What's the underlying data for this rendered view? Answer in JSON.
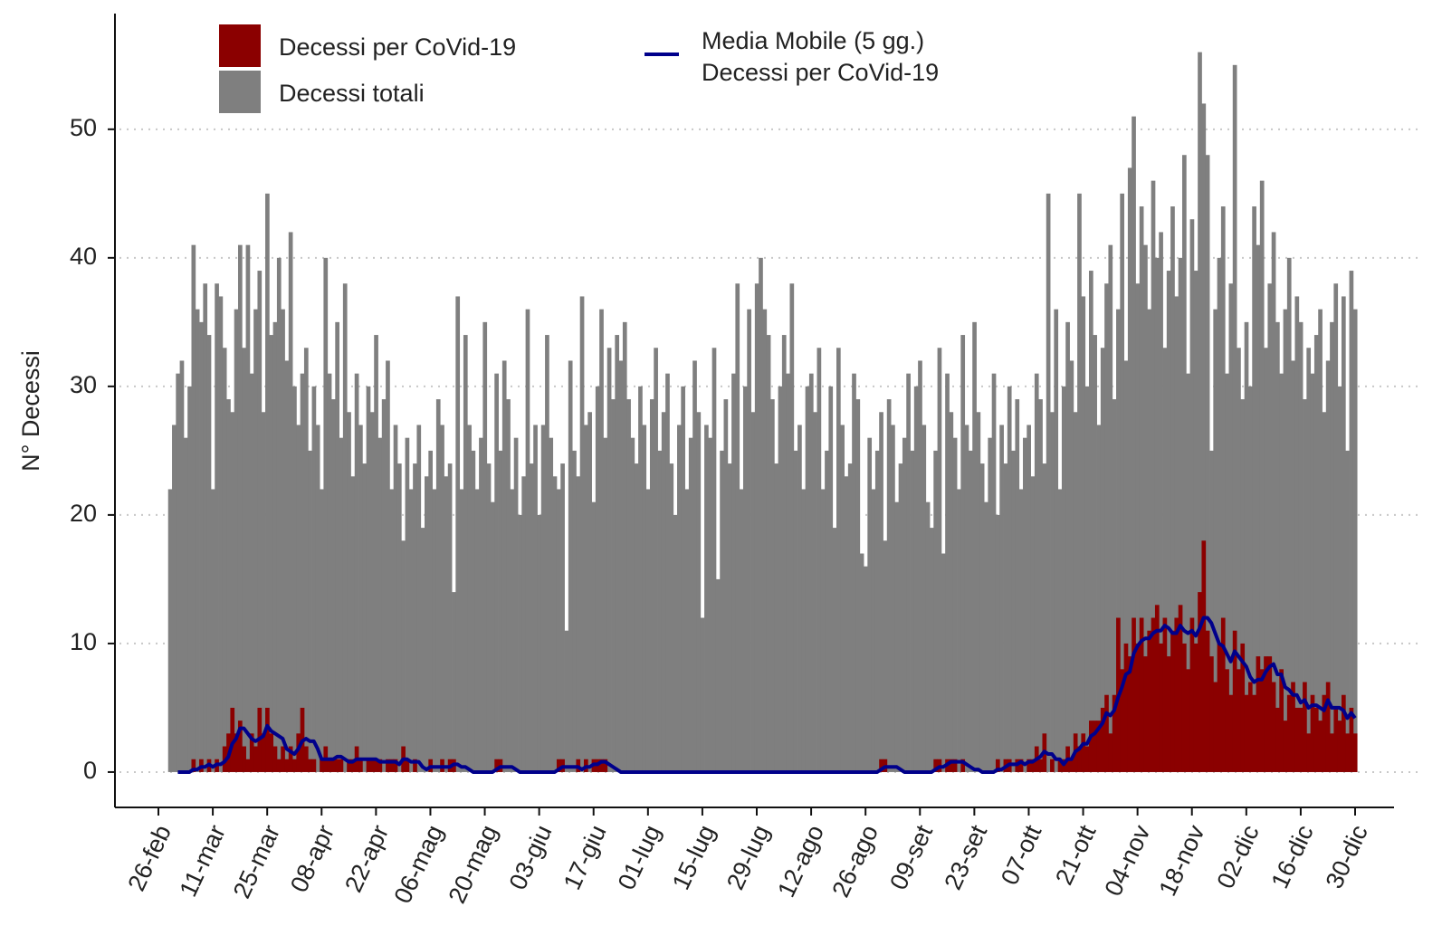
{
  "chart_data": {
    "type": "bar",
    "y_label": "N° Decessi",
    "ylim": [
      -2.75,
      59
    ],
    "yticks": [
      0,
      10,
      20,
      30,
      40,
      50
    ],
    "grid": true,
    "legend": "top-left",
    "categories": [
      "26-feb",
      null,
      null,
      null,
      null,
      null,
      null,
      null,
      null,
      null,
      null,
      null,
      null,
      null,
      "11-mar",
      null,
      null,
      null,
      null,
      null,
      null,
      null,
      null,
      null,
      null,
      null,
      null,
      null,
      "25-mar",
      null,
      null,
      null,
      null,
      null,
      null,
      null,
      null,
      null,
      null,
      null,
      null,
      null,
      "08-apr",
      null,
      null,
      null,
      null,
      null,
      null,
      null,
      null,
      null,
      null,
      null,
      null,
      null,
      "22-apr",
      null,
      null,
      null,
      null,
      null,
      null,
      null,
      null,
      null,
      null,
      null,
      null,
      null,
      "06-mag",
      null,
      null,
      null,
      null,
      null,
      null,
      null,
      null,
      null,
      null,
      null,
      null,
      null,
      "20-mag",
      null,
      null,
      null,
      null,
      null,
      null,
      null,
      null,
      null,
      null,
      null,
      null,
      null,
      "03-giu",
      null,
      null,
      null,
      null,
      null,
      null,
      null,
      null,
      null,
      null,
      null,
      null,
      null,
      "17-giu",
      null,
      null,
      null,
      null,
      null,
      null,
      null,
      null,
      null,
      null,
      null,
      null,
      null,
      "01-lug",
      null,
      null,
      null,
      null,
      null,
      null,
      null,
      null,
      null,
      null,
      null,
      null,
      null,
      "15-lug",
      null,
      null,
      null,
      null,
      null,
      null,
      null,
      null,
      null,
      null,
      null,
      null,
      null,
      "29-lug",
      null,
      null,
      null,
      null,
      null,
      null,
      null,
      null,
      null,
      null,
      null,
      null,
      null,
      "12-ago",
      null,
      null,
      null,
      null,
      null,
      null,
      null,
      null,
      null,
      null,
      null,
      null,
      null,
      "26-ago",
      null,
      null,
      null,
      null,
      null,
      null,
      null,
      null,
      null,
      null,
      null,
      null,
      null,
      "09-set",
      null,
      null,
      null,
      null,
      null,
      null,
      null,
      null,
      null,
      null,
      null,
      null,
      null,
      "23-set",
      null,
      null,
      null,
      null,
      null,
      null,
      null,
      null,
      null,
      null,
      null,
      null,
      null,
      "07-ott",
      null,
      null,
      null,
      null,
      null,
      null,
      null,
      null,
      null,
      null,
      null,
      null,
      null,
      "21-ott",
      null,
      null,
      null,
      null,
      null,
      null,
      null,
      null,
      null,
      null,
      null,
      null,
      null,
      "04-nov",
      null,
      null,
      null,
      null,
      null,
      null,
      null,
      null,
      null,
      null,
      null,
      null,
      null,
      "18-nov",
      null,
      null,
      null,
      null,
      null,
      null,
      null,
      null,
      null,
      null,
      null,
      null,
      null,
      "02-dic",
      null,
      null,
      null,
      null,
      null,
      null,
      null,
      null,
      null,
      null,
      null,
      null,
      null,
      "16-dic",
      null,
      null,
      null,
      null,
      null,
      null,
      null,
      null,
      null,
      null,
      null,
      null,
      null,
      "30-dic"
    ],
    "series": [
      {
        "name": "Decessi totali",
        "color": "#7f7f7f",
        "type": "bar",
        "values": [
          null,
          null,
          null,
          22,
          27,
          31,
          32,
          26,
          30,
          41,
          36,
          35,
          38,
          34,
          22,
          38,
          37,
          33,
          29,
          28,
          36,
          41,
          33,
          41,
          31,
          36,
          39,
          28,
          45,
          34,
          35,
          40,
          36,
          32,
          42,
          30,
          27,
          31,
          33,
          25,
          30,
          27,
          22,
          40,
          31,
          29,
          35,
          26,
          38,
          28,
          23,
          31,
          27,
          24,
          30,
          28,
          34,
          26,
          29,
          32,
          22,
          27,
          24,
          18,
          26,
          22,
          24,
          27,
          19,
          23,
          25,
          22,
          29,
          27,
          23,
          24,
          14,
          37,
          22,
          34,
          27,
          25,
          22,
          26,
          35,
          24,
          21,
          31,
          25,
          32,
          29,
          22,
          26,
          20,
          23,
          36,
          24,
          27,
          20,
          27,
          34,
          26,
          23,
          22,
          24,
          11,
          32,
          25,
          23,
          37,
          27,
          28,
          21,
          30,
          36,
          26,
          33,
          29,
          34,
          32,
          35,
          29,
          26,
          24,
          30,
          27,
          22,
          29,
          33,
          25,
          28,
          31,
          24,
          20,
          27,
          30,
          22,
          26,
          32,
          28,
          12,
          27,
          26,
          33,
          15,
          25,
          29,
          24,
          31,
          38,
          22,
          30,
          36,
          28,
          38,
          40,
          36,
          34,
          29,
          24,
          30,
          34,
          31,
          38,
          25,
          27,
          22,
          30,
          31,
          28,
          33,
          22,
          25,
          30,
          19,
          33,
          27,
          23,
          24,
          31,
          29,
          17,
          16,
          26,
          22,
          25,
          28,
          18,
          29,
          27,
          21,
          24,
          26,
          31,
          25,
          30,
          32,
          27,
          21,
          19,
          25,
          33,
          17,
          31,
          28,
          26,
          22,
          34,
          27,
          25,
          35,
          28,
          24,
          21,
          26,
          31,
          20,
          27,
          24,
          30,
          25,
          29,
          22,
          26,
          27,
          23,
          31,
          29,
          24,
          45,
          28,
          36,
          22,
          30,
          35,
          32,
          28,
          45,
          37,
          30,
          39,
          34,
          27,
          33,
          38,
          41,
          29,
          36,
          45,
          32,
          47,
          51,
          38,
          44,
          41,
          36,
          46,
          40,
          42,
          33,
          39,
          44,
          37,
          40,
          48,
          31,
          43,
          39,
          56,
          52,
          48,
          25,
          36,
          40,
          44,
          31,
          38,
          55,
          33,
          29,
          35,
          30,
          44,
          41,
          46,
          33,
          38,
          42,
          35,
          31,
          36,
          40,
          32,
          37,
          35,
          29,
          33,
          31,
          34,
          36,
          28,
          32,
          35,
          38,
          30,
          37,
          25,
          39,
          36
        ]
      },
      {
        "name": "Decessi per CoVid-19",
        "color": "#8b0000",
        "type": "bar",
        "values": [
          null,
          null,
          null,
          0,
          0,
          0,
          0,
          0,
          0,
          1,
          0,
          1,
          0,
          1,
          0,
          1,
          0,
          2,
          3,
          5,
          3,
          4,
          2,
          1,
          3,
          2,
          5,
          3,
          5,
          3,
          2,
          1,
          2,
          1,
          2,
          1,
          3,
          5,
          2,
          1,
          1,
          0,
          1,
          2,
          1,
          1,
          1,
          1,
          0,
          1,
          1,
          2,
          1,
          0,
          1,
          1,
          1,
          1,
          0,
          1,
          1,
          1,
          0,
          2,
          1,
          0,
          1,
          0,
          0,
          0,
          1,
          0,
          0,
          1,
          0,
          1,
          1,
          0,
          0,
          0,
          0,
          0,
          0,
          0,
          0,
          0,
          0,
          1,
          1,
          0,
          0,
          0,
          0,
          0,
          0,
          0,
          0,
          0,
          0,
          0,
          0,
          0,
          0,
          1,
          1,
          0,
          0,
          0,
          1,
          0,
          1,
          0,
          1,
          1,
          1,
          1,
          0,
          0,
          0,
          0,
          0,
          0,
          0,
          0,
          0,
          0,
          0,
          0,
          0,
          0,
          0,
          0,
          0,
          0,
          0,
          0,
          0,
          0,
          0,
          0,
          0,
          0,
          0,
          0,
          0,
          0,
          0,
          0,
          0,
          0,
          0,
          0,
          0,
          0,
          0,
          0,
          0,
          0,
          0,
          0,
          0,
          0,
          0,
          0,
          0,
          0,
          0,
          0,
          0,
          0,
          0,
          0,
          0,
          0,
          0,
          0,
          0,
          0,
          0,
          0,
          0,
          0,
          0,
          0,
          0,
          0,
          1,
          1,
          0,
          0,
          0,
          0,
          0,
          0,
          0,
          0,
          0,
          0,
          0,
          0,
          1,
          1,
          0,
          1,
          1,
          1,
          0,
          1,
          0,
          0,
          0,
          0,
          0,
          0,
          0,
          0,
          1,
          0,
          1,
          1,
          0,
          1,
          1,
          0,
          1,
          1,
          2,
          1,
          3,
          0,
          1,
          0,
          1,
          1,
          2,
          1,
          3,
          2,
          3,
          2,
          4,
          4,
          4,
          5,
          6,
          3,
          6,
          12,
          8,
          10,
          9,
          12,
          10,
          12,
          9,
          11,
          12,
          13,
          10,
          12,
          9,
          11,
          12,
          13,
          10,
          8,
          12,
          10,
          14,
          18,
          11,
          9,
          7,
          10,
          12,
          8,
          6,
          11,
          8,
          10,
          6,
          7,
          6,
          9,
          8,
          9,
          9,
          7,
          5,
          8,
          4,
          6,
          7,
          5,
          5,
          7,
          3,
          6,
          5,
          4,
          6,
          7,
          3,
          5,
          4,
          6,
          3,
          5,
          3
        ]
      },
      {
        "name": "Media Mobile (5 gg.)\nDecessi per CoVid-19",
        "color": "#00008b",
        "type": "line",
        "values": [
          null,
          null,
          null,
          null,
          null,
          0,
          0,
          0,
          0,
          0.2,
          0.2,
          0.4,
          0.4,
          0.6,
          0.4,
          0.6,
          0.6,
          0.8,
          1.2,
          2.2,
          2.6,
          3.4,
          3.4,
          3,
          2.6,
          2.4,
          2.6,
          2.8,
          3.6,
          3.2,
          3,
          2.8,
          2.6,
          1.8,
          1.6,
          1.4,
          1.8,
          2.4,
          2.6,
          2.4,
          2.4,
          1.8,
          1,
          1,
          1,
          1,
          1.2,
          1.2,
          1,
          0.8,
          0.8,
          1,
          1,
          1,
          1,
          1,
          1,
          0.8,
          0.8,
          0.8,
          0.8,
          0.8,
          0.6,
          1,
          1,
          0.8,
          0.8,
          0.8,
          0.4,
          0.2,
          0.4,
          0.4,
          0.4,
          0.4,
          0.4,
          0.4,
          0.6,
          0.6,
          0.4,
          0.4,
          0.2,
          0,
          0,
          0,
          0,
          0,
          0,
          0.2,
          0.4,
          0.4,
          0.4,
          0.4,
          0.2,
          0,
          0,
          0,
          0,
          0,
          0,
          0,
          0,
          0,
          0,
          0.2,
          0.4,
          0.4,
          0.4,
          0.4,
          0.4,
          0.2,
          0.4,
          0.4,
          0.6,
          0.6,
          0.8,
          0.8,
          0.6,
          0.4,
          0.2,
          0,
          0,
          0,
          0,
          0,
          0,
          0,
          0,
          0,
          0,
          0,
          0,
          0,
          0,
          0,
          0,
          0,
          0,
          0,
          0,
          0,
          0,
          0,
          0,
          0,
          0,
          0,
          0,
          0,
          0,
          0,
          0,
          0,
          0,
          0,
          0,
          0,
          0,
          0,
          0,
          0,
          0,
          0,
          0,
          0,
          0,
          0,
          0,
          0,
          0,
          0,
          0,
          0,
          0,
          0,
          0,
          0,
          0,
          0,
          0,
          0,
          0,
          0,
          0,
          0,
          0,
          0,
          0.2,
          0.4,
          0.4,
          0.4,
          0.4,
          0.2,
          0,
          0,
          0,
          0,
          0,
          0,
          0,
          0,
          0.2,
          0.4,
          0.4,
          0.6,
          0.8,
          0.8,
          0.8,
          0.8,
          0.6,
          0.4,
          0.2,
          0.2,
          0,
          0,
          0,
          0,
          0.2,
          0.2,
          0.4,
          0.6,
          0.6,
          0.6,
          0.8,
          0.6,
          0.8,
          0.8,
          1,
          1.2,
          1.6,
          1.4,
          1.4,
          1,
          1,
          0.6,
          1,
          1,
          1.6,
          1.8,
          2.2,
          2.2,
          2.8,
          3,
          3.4,
          3.8,
          4.6,
          4.4,
          4.8,
          5.8,
          6.6,
          7.6,
          7.8,
          9.2,
          9.8,
          10.2,
          10.4,
          10.4,
          10.8,
          11,
          11,
          11.4,
          11.2,
          10.8,
          10.8,
          11.4,
          11,
          10.8,
          11,
          10.6,
          11.2,
          12,
          12,
          11.6,
          10.8,
          10,
          9.8,
          9.2,
          8.6,
          9.4,
          9,
          8.6,
          8.2,
          7.4,
          7,
          7.2,
          7.2,
          7.8,
          8.2,
          8.4,
          7.6,
          7.6,
          6.6,
          6.4,
          6,
          6,
          5.4,
          5.6,
          5,
          5.2,
          5.2,
          5,
          4.8,
          5.6,
          5,
          5,
          5,
          4.8,
          4.2,
          4.6,
          4.2
        ]
      }
    ]
  }
}
